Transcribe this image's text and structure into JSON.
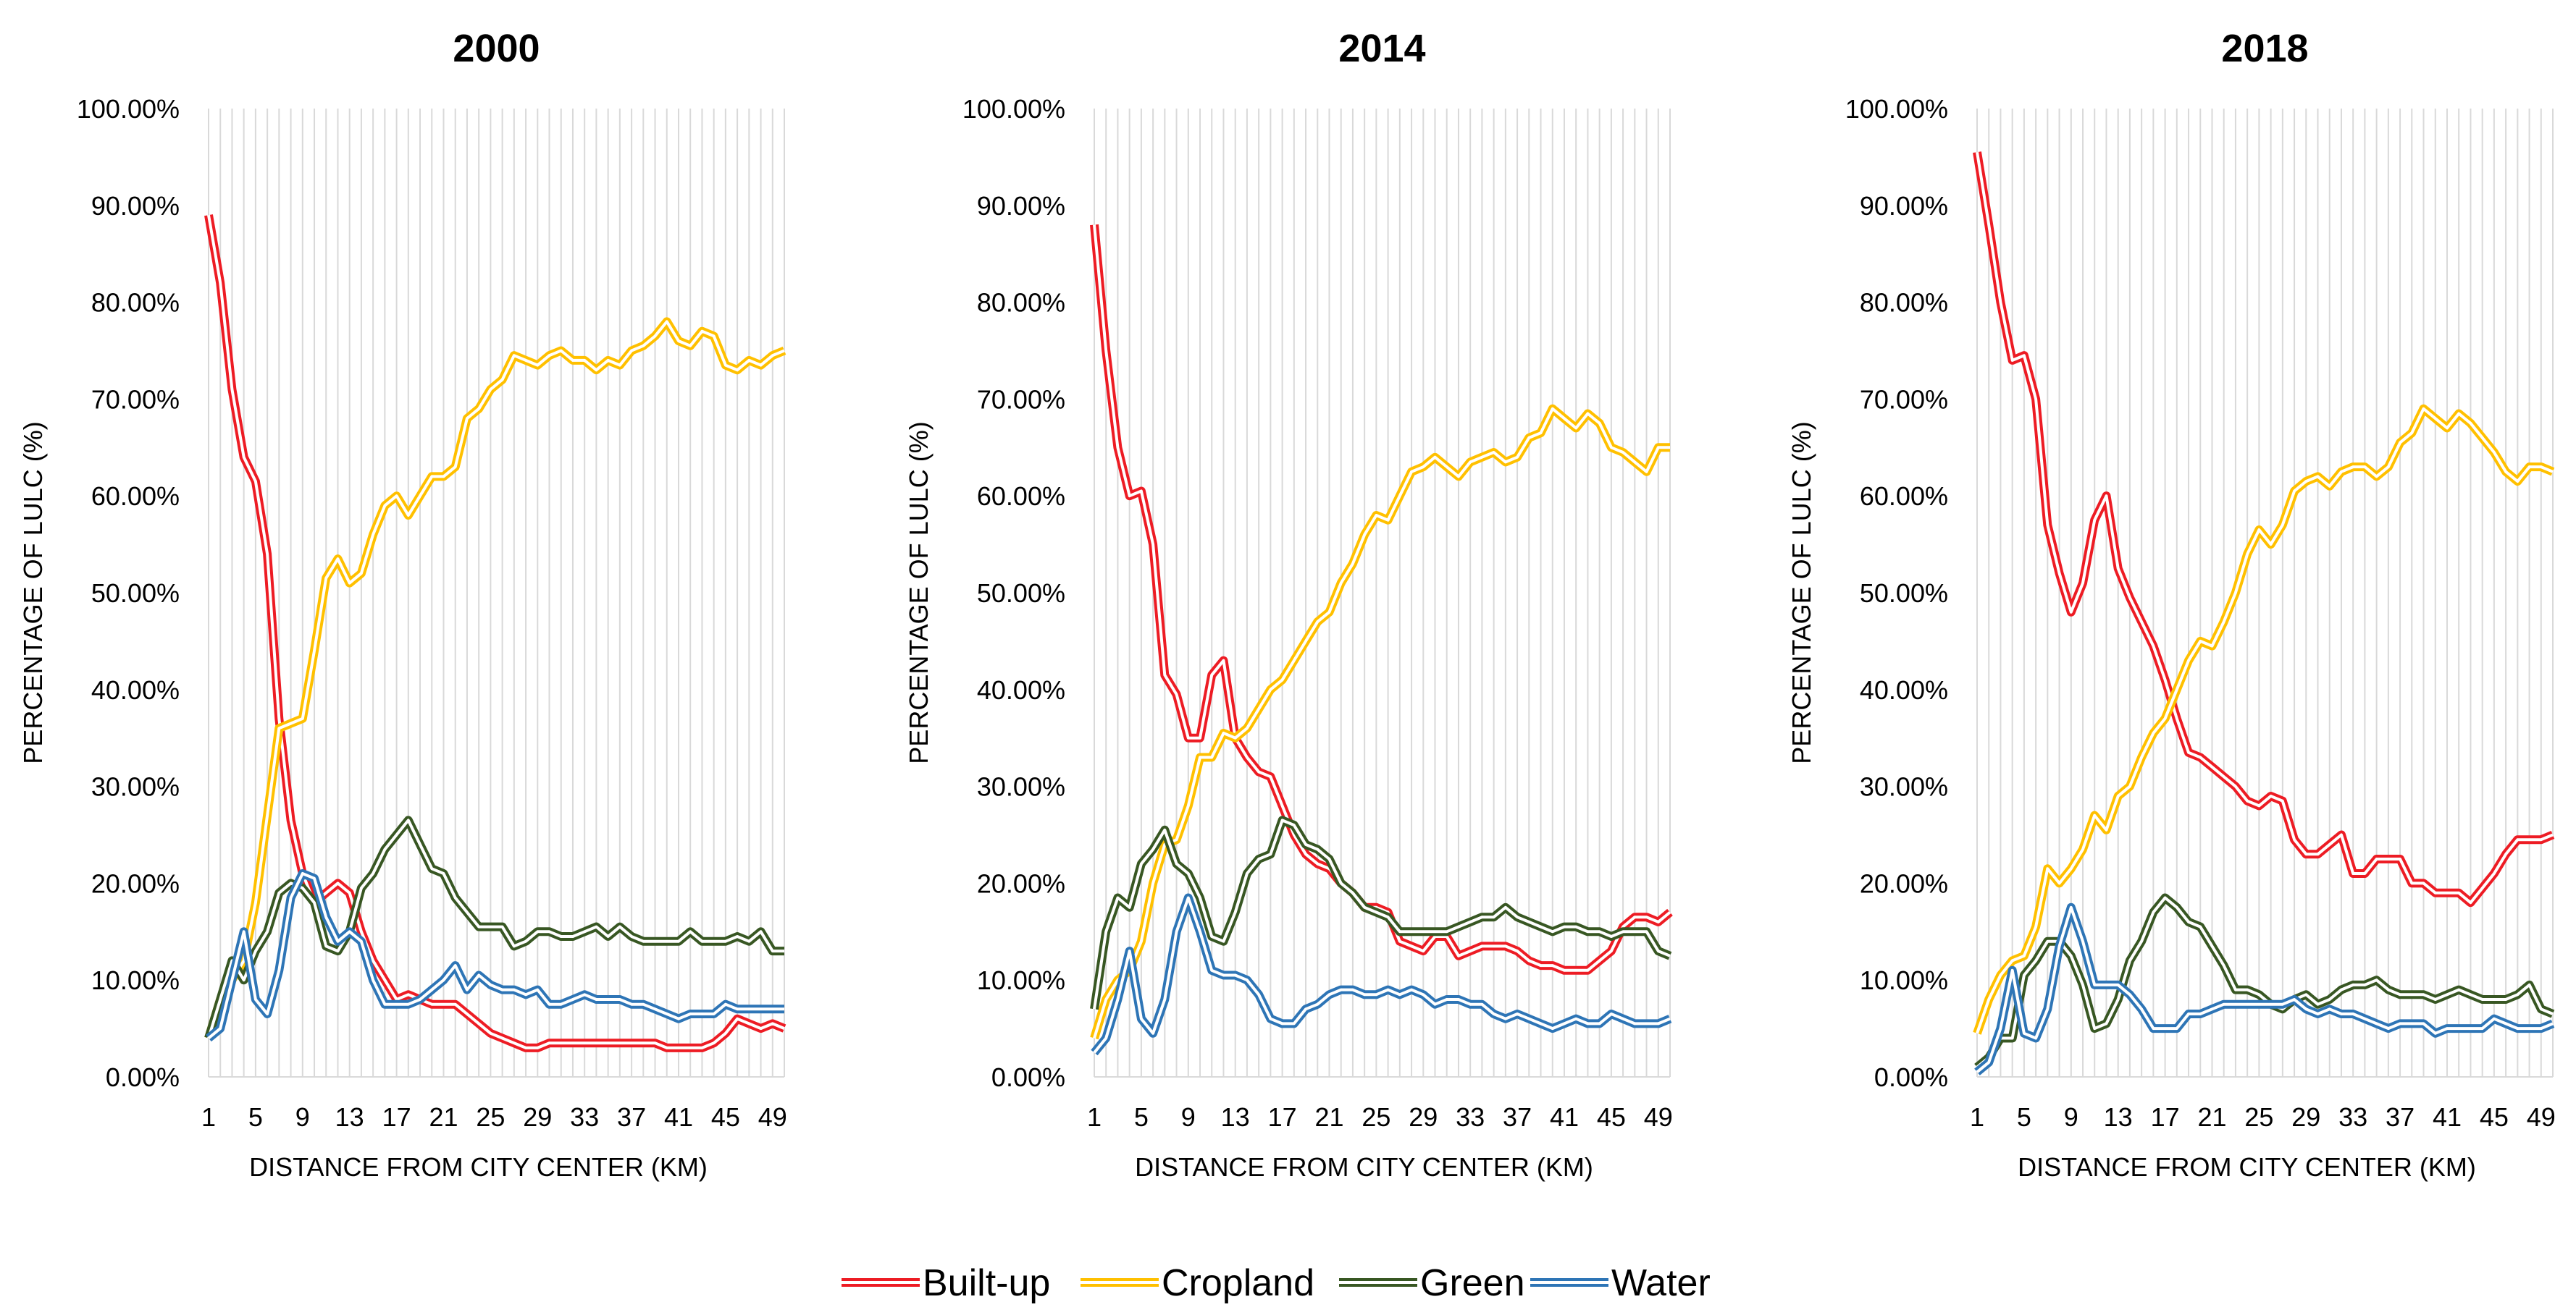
{
  "chart_data": [
    {
      "type": "line",
      "title": "2000",
      "xlabel": "DISTANCE FROM CITY CENTER (KM)",
      "ylabel": "PERCENTAGE OF  LULC (%)",
      "ylim": [
        0,
        100
      ],
      "xlim": [
        1,
        50
      ],
      "x_ticks": [
        1,
        5,
        9,
        13,
        17,
        21,
        25,
        29,
        33,
        37,
        41,
        45,
        49
      ],
      "y_ticks": [
        "0.00%",
        "10.00%",
        "20.00%",
        "30.00%",
        "40.00%",
        "50.00%",
        "60.00%",
        "70.00%",
        "80.00%",
        "90.00%",
        "100.00%"
      ],
      "grid": "vertical",
      "x": [
        1,
        2,
        3,
        4,
        5,
        6,
        7,
        8,
        9,
        10,
        11,
        12,
        13,
        14,
        15,
        16,
        17,
        18,
        19,
        20,
        21,
        22,
        23,
        24,
        25,
        26,
        27,
        28,
        29,
        30,
        31,
        32,
        33,
        34,
        35,
        36,
        37,
        38,
        39,
        40,
        41,
        42,
        43,
        44,
        45,
        46,
        47,
        48,
        49,
        50
      ],
      "series": [
        {
          "name": "Built-up",
          "values": [
            89,
            82,
            71,
            64,
            61.5,
            54,
            37,
            26.5,
            21,
            18,
            19,
            20,
            19,
            15,
            12,
            10,
            8,
            8.5,
            8,
            7.5,
            7.5,
            7.5,
            6.5,
            5.5,
            4.5,
            4,
            3.5,
            3,
            3,
            3.5,
            3.5,
            3.5,
            3.5,
            3.5,
            3.5,
            3.5,
            3.5,
            3.5,
            3.5,
            3,
            3,
            3,
            3,
            3.5,
            4.5,
            6,
            5.5,
            5,
            5.5,
            5
          ]
        },
        {
          "name": "Cropland",
          "values": [
            4,
            8,
            10,
            12,
            18,
            27,
            36,
            36.5,
            37,
            44,
            51.5,
            53.5,
            51,
            52,
            56,
            59,
            60,
            58,
            60,
            62,
            62,
            63,
            68,
            69,
            71,
            72,
            74.5,
            74,
            73.5,
            74.5,
            75,
            74,
            74,
            73,
            74,
            73.5,
            75,
            75.5,
            76.5,
            78,
            76,
            75.5,
            77,
            76.5,
            73.5,
            73,
            74,
            73.5,
            74.5,
            75
          ]
        },
        {
          "name": "Green",
          "values": [
            4,
            8,
            12,
            10,
            13,
            15,
            19,
            20,
            19.5,
            18,
            13.5,
            13,
            15,
            19.5,
            21,
            23.5,
            25,
            26.5,
            24,
            21.5,
            21,
            18.5,
            17,
            15.5,
            15.5,
            15.5,
            13.5,
            14,
            15,
            15,
            14.5,
            14.5,
            15,
            15.5,
            14.5,
            15.5,
            14.5,
            14,
            14,
            14,
            14,
            15,
            14,
            14,
            14,
            14.5,
            14,
            15,
            13,
            13
          ]
        },
        {
          "name": "Water",
          "values": [
            4,
            5,
            10,
            15,
            8,
            6.5,
            11,
            18.5,
            21,
            20.5,
            16.5,
            14,
            15,
            14,
            10,
            7.5,
            7.5,
            7.5,
            8,
            9,
            10,
            11.5,
            9,
            10.5,
            9.5,
            9,
            9,
            8.5,
            9,
            7.5,
            7.5,
            8,
            8.5,
            8,
            8,
            8,
            7.5,
            7.5,
            7,
            6.5,
            6,
            6.5,
            6.5,
            6.5,
            7.5,
            7,
            7,
            7,
            7,
            7
          ]
        }
      ]
    },
    {
      "type": "line",
      "title": "2014",
      "xlabel": "DISTANCE FROM CITY CENTER (KM)",
      "ylabel": "PERCENTAGE OF LULC (%)",
      "ylim": [
        0,
        100
      ],
      "xlim": [
        1,
        50
      ],
      "x_ticks": [
        1,
        5,
        9,
        13,
        17,
        21,
        25,
        29,
        33,
        37,
        41,
        45,
        49
      ],
      "y_ticks": [
        "0.00%",
        "10.00%",
        "20.00%",
        "30.00%",
        "40.00%",
        "50.00%",
        "60.00%",
        "70.00%",
        "80.00%",
        "90.00%",
        "100.00%"
      ],
      "grid": "vertical",
      "x": [
        1,
        2,
        3,
        4,
        5,
        6,
        7,
        8,
        9,
        10,
        11,
        12,
        13,
        14,
        15,
        16,
        17,
        18,
        19,
        20,
        21,
        22,
        23,
        24,
        25,
        26,
        27,
        28,
        29,
        30,
        31,
        32,
        33,
        34,
        35,
        36,
        37,
        38,
        39,
        40,
        41,
        42,
        43,
        44,
        45,
        46,
        47,
        48,
        49,
        50
      ],
      "series": [
        {
          "name": "Built-up",
          "values": [
            88,
            75,
            65,
            60,
            60.5,
            55,
            41.5,
            39.5,
            35,
            35,
            41.5,
            43,
            35,
            33,
            31.5,
            31,
            28,
            25,
            23,
            22,
            21.5,
            20,
            19,
            17.5,
            17.5,
            17,
            14,
            13.5,
            13,
            14.5,
            14.5,
            12.5,
            13,
            13.5,
            13.5,
            13.5,
            13,
            12,
            11.5,
            11.5,
            11,
            11,
            11,
            12,
            13,
            15.5,
            16.5,
            16.5,
            16,
            17
          ]
        },
        {
          "name": "Cropland",
          "values": [
            4,
            8,
            10,
            11,
            14,
            20,
            24,
            24.5,
            28,
            33,
            33,
            35.5,
            35,
            36,
            38,
            40,
            41,
            43,
            45,
            47,
            48,
            51,
            53,
            56,
            58,
            57.5,
            60,
            62.5,
            63,
            64,
            63,
            62,
            63.5,
            64,
            64.5,
            63.5,
            64,
            66,
            66.5,
            69,
            68,
            67,
            68.5,
            67.5,
            65,
            64.5,
            63.5,
            62.5,
            65,
            65
          ]
        },
        {
          "name": "Green",
          "values": [
            7,
            15,
            18.5,
            17.5,
            22,
            23.5,
            25.5,
            22,
            21,
            18.5,
            14.5,
            14,
            17,
            21,
            22.5,
            23,
            26.5,
            26,
            24,
            23.5,
            22.5,
            20,
            19,
            17.5,
            17,
            16.5,
            15,
            15,
            15,
            15,
            15,
            15.5,
            16,
            16.5,
            16.5,
            17.5,
            16.5,
            16,
            15.5,
            15,
            15.5,
            15.5,
            15,
            15,
            14.5,
            15,
            15,
            15,
            13,
            12.5
          ]
        },
        {
          "name": "Water",
          "values": [
            2.5,
            4,
            8,
            13,
            6,
            4.5,
            8,
            15,
            18.5,
            15,
            11,
            10.5,
            10.5,
            10,
            8.5,
            6,
            5.5,
            5.5,
            7,
            7.5,
            8.5,
            9,
            9,
            8.5,
            8.5,
            9,
            8.5,
            9,
            8.5,
            7.5,
            8,
            8,
            7.5,
            7.5,
            6.5,
            6,
            6.5,
            6,
            5.5,
            5,
            5.5,
            6,
            5.5,
            5.5,
            6.5,
            6,
            5.5,
            5.5,
            5.5,
            6
          ]
        }
      ]
    },
    {
      "type": "line",
      "title": "2018",
      "xlabel": "DISTANCE FROM CITY CENTER (KM)",
      "ylabel": "PERCENTAGE OF LULC (%)",
      "ylim": [
        0,
        100
      ],
      "xlim": [
        1,
        50
      ],
      "x_ticks": [
        1,
        5,
        9,
        13,
        17,
        21,
        25,
        29,
        33,
        37,
        41,
        45,
        49
      ],
      "y_ticks": [
        "0.00%",
        "10.00%",
        "20.00%",
        "30.00%",
        "40.00%",
        "50.00%",
        "60.00%",
        "70.00%",
        "80.00%",
        "90.00%",
        "100.00%"
      ],
      "grid": "vertical",
      "x": [
        1,
        2,
        3,
        4,
        5,
        6,
        7,
        8,
        9,
        10,
        11,
        12,
        13,
        14,
        15,
        16,
        17,
        18,
        19,
        20,
        21,
        22,
        23,
        24,
        25,
        26,
        27,
        28,
        29,
        30,
        31,
        32,
        33,
        34,
        35,
        36,
        37,
        38,
        39,
        40,
        41,
        42,
        43,
        44,
        45,
        46,
        47,
        48,
        49,
        50
      ],
      "series": [
        {
          "name": "Built-up",
          "values": [
            95.5,
            88,
            80,
            74,
            74.5,
            70,
            57,
            52,
            48,
            51,
            57.5,
            60,
            52.5,
            49.5,
            47,
            44.5,
            41,
            37,
            33.5,
            33,
            32,
            31,
            30,
            28.5,
            28,
            29,
            28.5,
            24.5,
            23,
            23,
            24,
            25,
            21,
            21,
            22.5,
            22.5,
            22.5,
            20,
            20,
            19,
            19,
            19,
            18,
            19.5,
            21,
            23,
            24.5,
            24.5,
            24.5,
            25
          ]
        },
        {
          "name": "Cropland",
          "values": [
            4.5,
            8,
            10.5,
            12,
            12.5,
            15.5,
            21.5,
            20,
            21.5,
            23.5,
            27,
            25.5,
            29,
            30,
            33,
            35.5,
            37,
            40,
            43,
            45,
            44.5,
            47,
            50,
            54,
            56.5,
            55,
            57,
            60.5,
            61.5,
            62,
            61,
            62.5,
            63,
            63,
            62,
            63,
            65.5,
            66.5,
            69,
            68,
            67,
            68.5,
            67.5,
            66,
            64.5,
            62.5,
            61.5,
            63,
            63,
            62.5
          ]
        },
        {
          "name": "Green",
          "values": [
            1,
            2,
            4,
            4,
            10.5,
            12,
            14,
            14,
            12.5,
            9.5,
            5,
            5.5,
            8,
            12,
            14,
            17,
            18.5,
            17.5,
            16,
            15.5,
            13.5,
            11.5,
            9,
            9,
            8.5,
            7.5,
            7,
            8,
            8.5,
            7.5,
            8,
            9,
            9.5,
            9.5,
            10,
            9,
            8.5,
            8.5,
            8.5,
            8,
            8.5,
            9,
            8.5,
            8,
            8,
            8,
            8.5,
            9.5,
            7,
            6.5
          ]
        },
        {
          "name": "Water",
          "values": [
            0.5,
            1.5,
            5,
            11,
            4.5,
            4,
            7,
            13.5,
            17.5,
            14,
            9.5,
            9.5,
            9.5,
            8.5,
            7,
            5,
            5,
            5,
            6.5,
            6.5,
            7,
            7.5,
            7.5,
            7.5,
            7.5,
            7.5,
            7.5,
            8,
            7,
            6.5,
            7,
            6.5,
            6.5,
            6,
            5.5,
            5,
            5.5,
            5.5,
            5.5,
            4.5,
            5,
            5,
            5,
            5,
            6,
            5.5,
            5,
            5,
            5,
            5.5
          ]
        }
      ]
    }
  ],
  "legend": {
    "position": "bottom-center",
    "items": [
      {
        "label": "Built-up",
        "color": "#ED1C24"
      },
      {
        "label": "Cropland",
        "color": "#FFC000"
      },
      {
        "label": "Green",
        "color": "#385723"
      },
      {
        "label": "Water",
        "color": "#2E75B6"
      }
    ]
  },
  "colors": {
    "Built-up": "#ED1C24",
    "Cropland": "#FFC000",
    "Green": "#385723",
    "Water": "#2E75B6",
    "grid": "#D9D9D9"
  }
}
